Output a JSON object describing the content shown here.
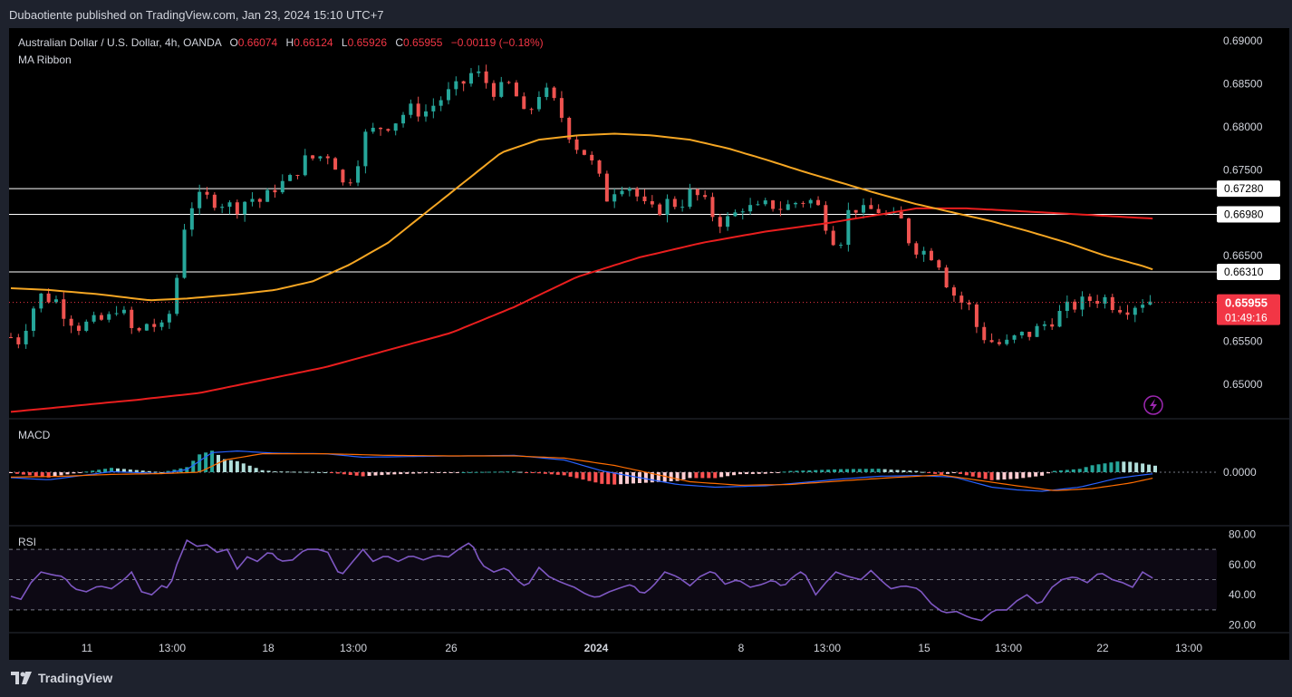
{
  "header": {
    "publisher": "Dubaotiente published on TradingView.com, Jan 23, 2024 15:10 UTC+7"
  },
  "footer": {
    "brand": "TradingView"
  },
  "legend": {
    "symbol": "Australian Dollar / U.S. Dollar, 4h, OANDA",
    "o_label": "O",
    "o_value": "0.66074",
    "h_label": "H",
    "h_value": "0.66124",
    "l_label": "L",
    "l_value": "0.65926",
    "c_label": "C",
    "c_value": "0.65955",
    "change": "−0.00119 (−0.18%)",
    "indicator": "MA Ribbon"
  },
  "colors": {
    "up": "#26a69a",
    "down": "#ef5350",
    "ma_fast": "#f5a623",
    "ma_slow": "#e91e1e",
    "macd_line": "#2962ff",
    "signal_line": "#ff6d00",
    "rsi_line": "#7e57c2",
    "axis_text": "#d1d4dc",
    "price_badge": "#f23645"
  },
  "chart_data": [
    {
      "type": "candlestick",
      "title": "Australian Dollar / U.S. Dollar, 4h, OANDA",
      "x_tick_labels": [
        "11",
        "13:00",
        "18",
        "13:00",
        "26",
        "2024",
        "8",
        "13:00",
        "15",
        "13:00",
        "22",
        "13:00"
      ],
      "y_tick_labels": [
        "0.69000",
        "0.68500",
        "0.68000",
        "0.67500",
        "0.66500",
        "0.65500",
        "0.65000"
      ],
      "ylim": [
        0.646,
        0.6915
      ],
      "horizontal_levels": [
        {
          "value": 0.6728,
          "label": "0.67280"
        },
        {
          "value": 0.6698,
          "label": "0.66980"
        },
        {
          "value": 0.6631,
          "label": "0.66310"
        }
      ],
      "last_price": {
        "value": 0.65955,
        "label": "0.65955",
        "countdown": "01:49:16"
      },
      "close_path": [
        [
          0,
          0.6555
        ],
        [
          8,
          0.655
        ],
        [
          12,
          0.657
        ],
        [
          18,
          0.659
        ],
        [
          24,
          0.6603
        ],
        [
          36,
          0.6598
        ],
        [
          44,
          0.658
        ],
        [
          54,
          0.6568
        ],
        [
          66,
          0.6572
        ],
        [
          78,
          0.6577
        ],
        [
          86,
          0.6595
        ],
        [
          94,
          0.6565
        ],
        [
          102,
          0.656
        ],
        [
          110,
          0.6575
        ],
        [
          118,
          0.6562
        ],
        [
          124,
          0.6568
        ],
        [
          132,
          0.6625
        ],
        [
          140,
          0.6705
        ],
        [
          152,
          0.6718
        ],
        [
          168,
          0.6712
        ],
        [
          178,
          0.6705
        ],
        [
          190,
          0.6718
        ],
        [
          200,
          0.6712
        ],
        [
          210,
          0.673
        ],
        [
          222,
          0.6738
        ],
        [
          232,
          0.676
        ],
        [
          244,
          0.6765
        ],
        [
          256,
          0.677
        ],
        [
          262,
          0.673
        ],
        [
          272,
          0.6745
        ],
        [
          282,
          0.679
        ],
        [
          294,
          0.68
        ],
        [
          304,
          0.6805
        ],
        [
          316,
          0.682
        ],
        [
          330,
          0.6818
        ],
        [
          344,
          0.6835
        ],
        [
          358,
          0.6848
        ],
        [
          368,
          0.6865
        ],
        [
          376,
          0.6855
        ],
        [
          386,
          0.684
        ],
        [
          398,
          0.685
        ],
        [
          410,
          0.6805
        ],
        [
          418,
          0.684
        ],
        [
          428,
          0.6838
        ],
        [
          438,
          0.6812
        ],
        [
          448,
          0.678
        ],
        [
          458,
          0.6768
        ],
        [
          466,
          0.6745
        ],
        [
          474,
          0.6718
        ],
        [
          484,
          0.6735
        ],
        [
          494,
          0.673
        ],
        [
          502,
          0.6708
        ],
        [
          512,
          0.67
        ],
        [
          522,
          0.6712
        ],
        [
          532,
          0.671
        ],
        [
          542,
          0.6725
        ],
        [
          552,
          0.671
        ],
        [
          562,
          0.669
        ],
        [
          572,
          0.6692
        ],
        [
          582,
          0.6708
        ],
        [
          592,
          0.6702
        ],
        [
          604,
          0.671
        ],
        [
          614,
          0.6705
        ],
        [
          624,
          0.6712
        ],
        [
          632,
          0.6715
        ],
        [
          640,
          0.6712
        ],
        [
          648,
          0.6688
        ],
        [
          658,
          0.666
        ],
        [
          668,
          0.671
        ],
        [
          678,
          0.67
        ],
        [
          688,
          0.6705
        ],
        [
          698,
          0.6695
        ],
        [
          708,
          0.669
        ],
        [
          716,
          0.6662
        ],
        [
          726,
          0.6655
        ],
        [
          736,
          0.665
        ],
        [
          744,
          0.662
        ],
        [
          752,
          0.66
        ],
        [
          762,
          0.659
        ],
        [
          770,
          0.656
        ],
        [
          780,
          0.655
        ],
        [
          790,
          0.6545
        ],
        [
          800,
          0.6555
        ],
        [
          812,
          0.656
        ],
        [
          822,
          0.657
        ],
        [
          832,
          0.658
        ],
        [
          842,
          0.659
        ],
        [
          852,
          0.6595
        ],
        [
          860,
          0.66
        ],
        [
          870,
          0.66
        ],
        [
          878,
          0.6592
        ],
        [
          888,
          0.659
        ],
        [
          896,
          0.6595
        ],
        [
          904,
          0.66
        ],
        [
          910,
          0.6595
        ]
      ],
      "ma_fast_path": [
        [
          0,
          0.6612
        ],
        [
          30,
          0.661
        ],
        [
          70,
          0.6605
        ],
        [
          110,
          0.6598
        ],
        [
          140,
          0.66
        ],
        [
          180,
          0.6605
        ],
        [
          210,
          0.661
        ],
        [
          240,
          0.662
        ],
        [
          270,
          0.664
        ],
        [
          300,
          0.6665
        ],
        [
          330,
          0.67
        ],
        [
          360,
          0.6735
        ],
        [
          390,
          0.677
        ],
        [
          420,
          0.6785
        ],
        [
          450,
          0.679
        ],
        [
          480,
          0.6792
        ],
        [
          510,
          0.679
        ],
        [
          540,
          0.6785
        ],
        [
          570,
          0.6775
        ],
        [
          600,
          0.6762
        ],
        [
          630,
          0.6748
        ],
        [
          660,
          0.6735
        ],
        [
          690,
          0.6722
        ],
        [
          720,
          0.671
        ],
        [
          750,
          0.67
        ],
        [
          780,
          0.669
        ],
        [
          810,
          0.6678
        ],
        [
          840,
          0.6665
        ],
        [
          870,
          0.665
        ],
        [
          900,
          0.6638
        ],
        [
          910,
          0.6633
        ]
      ],
      "ma_slow_path": [
        [
          0,
          0.6468
        ],
        [
          50,
          0.6475
        ],
        [
          100,
          0.6482
        ],
        [
          150,
          0.649
        ],
        [
          200,
          0.6505
        ],
        [
          250,
          0.652
        ],
        [
          300,
          0.654
        ],
        [
          350,
          0.656
        ],
        [
          400,
          0.659
        ],
        [
          450,
          0.6625
        ],
        [
          500,
          0.6648
        ],
        [
          550,
          0.6665
        ],
        [
          600,
          0.6678
        ],
        [
          650,
          0.6688
        ],
        [
          700,
          0.67
        ],
        [
          720,
          0.6705
        ],
        [
          760,
          0.6705
        ],
        [
          800,
          0.6702
        ],
        [
          850,
          0.6698
        ],
        [
          910,
          0.6693
        ]
      ]
    },
    {
      "type": "histogram+line",
      "title": "MACD",
      "y_tick_labels": [
        "0.0000"
      ],
      "macd_path": [
        [
          0,
          -0.2
        ],
        [
          30,
          -0.28
        ],
        [
          80,
          0.02
        ],
        [
          120,
          -0.05
        ],
        [
          140,
          0.1
        ],
        [
          160,
          0.72
        ],
        [
          180,
          0.78
        ],
        [
          210,
          0.7
        ],
        [
          250,
          0.68
        ],
        [
          280,
          0.55
        ],
        [
          320,
          0.58
        ],
        [
          400,
          0.62
        ],
        [
          440,
          0.45
        ],
        [
          470,
          0.05
        ],
        [
          500,
          -0.2
        ],
        [
          530,
          -0.45
        ],
        [
          560,
          -0.55
        ],
        [
          600,
          -0.5
        ],
        [
          630,
          -0.38
        ],
        [
          660,
          -0.25
        ],
        [
          690,
          -0.15
        ],
        [
          720,
          -0.12
        ],
        [
          750,
          -0.18
        ],
        [
          780,
          -0.55
        ],
        [
          800,
          -0.65
        ],
        [
          820,
          -0.7
        ],
        [
          850,
          -0.55
        ],
        [
          880,
          -0.22
        ],
        [
          900,
          -0.1
        ],
        [
          910,
          -0.05
        ]
      ],
      "signal_path": [
        [
          0,
          -0.18
        ],
        [
          40,
          -0.15
        ],
        [
          80,
          -0.08
        ],
        [
          120,
          -0.05
        ],
        [
          150,
          0.0
        ],
        [
          170,
          0.45
        ],
        [
          200,
          0.68
        ],
        [
          250,
          0.68
        ],
        [
          300,
          0.62
        ],
        [
          350,
          0.6
        ],
        [
          400,
          0.6
        ],
        [
          440,
          0.52
        ],
        [
          480,
          0.25
        ],
        [
          510,
          -0.05
        ],
        [
          540,
          -0.35
        ],
        [
          580,
          -0.48
        ],
        [
          620,
          -0.45
        ],
        [
          660,
          -0.32
        ],
        [
          700,
          -0.2
        ],
        [
          740,
          -0.1
        ],
        [
          770,
          -0.3
        ],
        [
          800,
          -0.5
        ],
        [
          830,
          -0.68
        ],
        [
          860,
          -0.6
        ],
        [
          890,
          -0.4
        ],
        [
          910,
          -0.2
        ]
      ]
    },
    {
      "type": "line",
      "title": "RSI",
      "y_tick_labels": [
        "80.00",
        "60.00",
        "40.00",
        "20.00"
      ],
      "ylim": [
        15,
        85
      ],
      "bands": [
        30,
        50,
        70
      ],
      "rsi_path": [
        [
          0,
          39
        ],
        [
          8,
          37
        ],
        [
          16,
          48
        ],
        [
          24,
          55
        ],
        [
          34,
          53
        ],
        [
          42,
          52
        ],
        [
          50,
          44
        ],
        [
          60,
          42
        ],
        [
          70,
          46
        ],
        [
          80,
          44
        ],
        [
          90,
          50
        ],
        [
          96,
          55
        ],
        [
          104,
          42
        ],
        [
          112,
          40
        ],
        [
          120,
          46
        ],
        [
          126,
          44
        ],
        [
          132,
          60
        ],
        [
          140,
          76
        ],
        [
          148,
          72
        ],
        [
          156,
          73
        ],
        [
          164,
          68
        ],
        [
          172,
          70
        ],
        [
          180,
          57
        ],
        [
          188,
          65
        ],
        [
          196,
          62
        ],
        [
          206,
          69
        ],
        [
          214,
          62
        ],
        [
          224,
          63
        ],
        [
          234,
          70
        ],
        [
          244,
          70
        ],
        [
          252,
          68
        ],
        [
          262,
          52
        ],
        [
          270,
          60
        ],
        [
          280,
          70
        ],
        [
          288,
          62
        ],
        [
          298,
          66
        ],
        [
          308,
          62
        ],
        [
          318,
          66
        ],
        [
          328,
          63
        ],
        [
          338,
          66
        ],
        [
          348,
          65
        ],
        [
          356,
          70
        ],
        [
          366,
          75
        ],
        [
          374,
          60
        ],
        [
          384,
          55
        ],
        [
          394,
          58
        ],
        [
          402,
          50
        ],
        [
          410,
          45
        ],
        [
          420,
          58
        ],
        [
          428,
          52
        ],
        [
          438,
          48
        ],
        [
          448,
          45
        ],
        [
          458,
          40
        ],
        [
          466,
          38
        ],
        [
          476,
          42
        ],
        [
          486,
          45
        ],
        [
          494,
          47
        ],
        [
          502,
          40
        ],
        [
          510,
          45
        ],
        [
          520,
          55
        ],
        [
          530,
          52
        ],
        [
          540,
          46
        ],
        [
          548,
          52
        ],
        [
          558,
          56
        ],
        [
          568,
          47
        ],
        [
          578,
          50
        ],
        [
          588,
          45
        ],
        [
          598,
          47
        ],
        [
          606,
          50
        ],
        [
          614,
          45
        ],
        [
          622,
          52
        ],
        [
          630,
          56
        ],
        [
          640,
          40
        ],
        [
          648,
          48
        ],
        [
          656,
          55
        ],
        [
          666,
          52
        ],
        [
          676,
          50
        ],
        [
          684,
          56
        ],
        [
          694,
          48
        ],
        [
          700,
          44
        ],
        [
          710,
          46
        ],
        [
          722,
          44
        ],
        [
          732,
          34
        ],
        [
          742,
          28
        ],
        [
          752,
          29
        ],
        [
          762,
          25
        ],
        [
          772,
          23
        ],
        [
          782,
          30
        ],
        [
          792,
          30
        ],
        [
          800,
          36
        ],
        [
          808,
          40
        ],
        [
          818,
          33
        ],
        [
          828,
          45
        ],
        [
          836,
          50
        ],
        [
          846,
          52
        ],
        [
          856,
          48
        ],
        [
          866,
          55
        ],
        [
          876,
          50
        ],
        [
          884,
          48
        ],
        [
          892,
          45
        ],
        [
          900,
          55
        ],
        [
          910,
          50
        ]
      ]
    }
  ]
}
